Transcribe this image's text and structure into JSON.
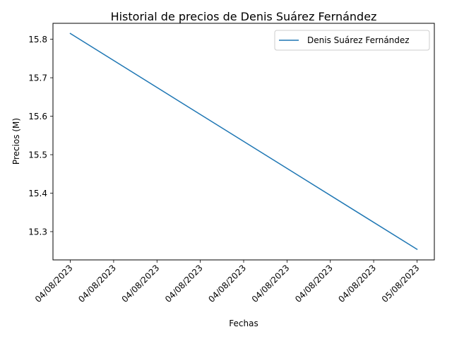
{
  "chart_data": {
    "type": "line",
    "title": "Historial de precios de Denis Suárez Fernández",
    "xlabel": "Fechas",
    "ylabel": "Precios (M)",
    "x_tick_labels": [
      "04/08/2023",
      "04/08/2023",
      "04/08/2023",
      "04/08/2023",
      "04/08/2023",
      "04/08/2023",
      "04/08/2023",
      "04/08/2023",
      "05/08/2023"
    ],
    "y_ticks": [
      15.3,
      15.4,
      15.5,
      15.6,
      15.7,
      15.8
    ],
    "y_tick_labels": [
      "15.3",
      "15.4",
      "15.5",
      "15.6",
      "15.7",
      "15.8"
    ],
    "ylim": [
      15.2265,
      15.8415
    ],
    "xlim": [
      -0.4,
      8.4
    ],
    "legend_position": "top-right",
    "series": [
      {
        "name": "Denis Suárez Fernández",
        "color": "#1f77b4",
        "x": [
          0,
          8
        ],
        "values": [
          15.815,
          15.254
        ]
      }
    ]
  }
}
